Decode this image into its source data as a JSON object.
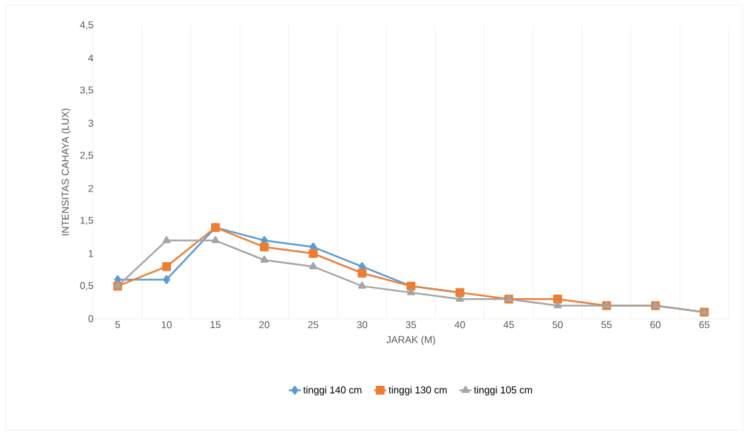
{
  "chart_data": {
    "type": "line",
    "xlabel": "JARAK (M)",
    "ylabel": "INTENSITAS CAHAYA (LUX)",
    "categories": [
      "5",
      "10",
      "15",
      "20",
      "25",
      "30",
      "35",
      "40",
      "45",
      "50",
      "55",
      "60",
      "65"
    ],
    "series": [
      {
        "name": "tinggi 140 cm",
        "color": "#5b9bd5",
        "marker": "diamond",
        "values": [
          0.6,
          0.6,
          1.4,
          1.2,
          1.1,
          0.8,
          0.5,
          0.4,
          null,
          null,
          null,
          null,
          null
        ]
      },
      {
        "name": "tinggi 130 cm",
        "color": "#ed7d31",
        "marker": "square",
        "values": [
          0.5,
          0.8,
          1.4,
          1.1,
          1.0,
          0.7,
          0.5,
          0.4,
          0.3,
          0.3,
          0.2,
          0.2,
          0.1
        ]
      },
      {
        "name": "tinggi 105 cm",
        "color": "#a5a5a5",
        "marker": "triangle",
        "values": [
          0.5,
          1.2,
          1.2,
          0.9,
          0.8,
          0.5,
          0.4,
          0.3,
          0.3,
          0.2,
          0.2,
          0.2,
          0.1
        ]
      }
    ],
    "ylim": [
      0,
      4.5
    ],
    "yticks": [
      0,
      {
        "value": 0.5,
        "label": "0,5"
      },
      1,
      {
        "value": 1.5,
        "label": "1,5"
      },
      2,
      {
        "value": 2.5,
        "label": "2,5"
      },
      3,
      {
        "value": 3.5,
        "label": "3,5"
      },
      4,
      {
        "value": 4.5,
        "label": "4,5"
      }
    ],
    "grid": "x",
    "legend": "bottom",
    "line_style": "solid"
  }
}
